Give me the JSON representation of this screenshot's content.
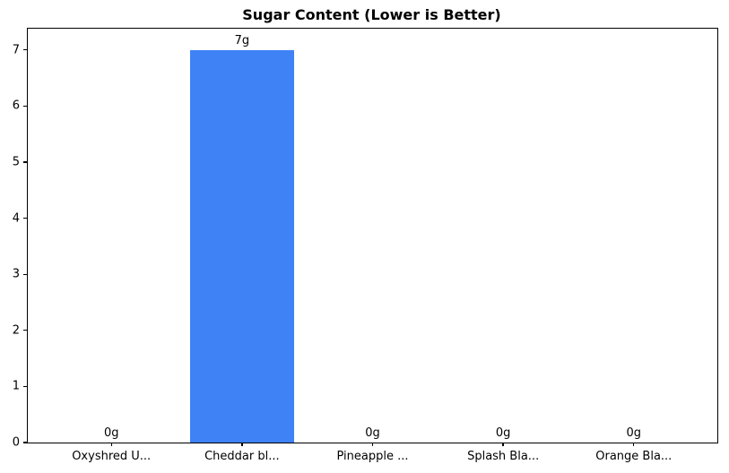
{
  "chart_data": {
    "type": "bar",
    "title": "Sugar Content (Lower is Better)",
    "categories": [
      "Oxyshred U...",
      "Cheddar bl...",
      "Pineapple ...",
      "Splash Bla...",
      "Orange Bla..."
    ],
    "values": [
      0,
      7,
      0,
      0,
      0
    ],
    "value_labels": [
      "0g",
      "7g",
      "0g",
      "0g",
      "0g"
    ],
    "yticks": [
      0,
      1,
      2,
      3,
      4,
      5,
      6,
      7
    ],
    "ylim": [
      0,
      7.38
    ],
    "xlabel": "",
    "ylabel": "",
    "grid": false,
    "bar_color": "#3e82f6",
    "text_color": "#000000",
    "background_color": "#ffffff"
  }
}
